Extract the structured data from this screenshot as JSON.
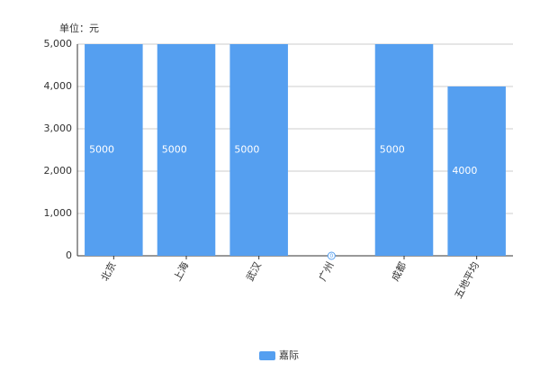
{
  "chart_data": {
    "type": "bar",
    "unit_label": "单位：元",
    "categories": [
      "北京",
      "上海",
      "武汉",
      "广州",
      "成都",
      "五地平均"
    ],
    "series": [
      {
        "name": "嘉际",
        "color": "#559ff0",
        "values": [
          5000,
          5000,
          5000,
          0,
          5000,
          4000
        ]
      }
    ],
    "ylim": [
      0,
      5000
    ],
    "yticks": [
      0,
      {
        "value": 1000,
        "label": "1,000"
      },
      {
        "value": 2000,
        "label": "2,000"
      },
      {
        "value": 3000,
        "label": "3,000"
      },
      {
        "value": 4000,
        "label": "4,000"
      },
      {
        "value": 5000,
        "label": "5,000"
      }
    ],
    "grid": true,
    "legend": "bottom"
  }
}
